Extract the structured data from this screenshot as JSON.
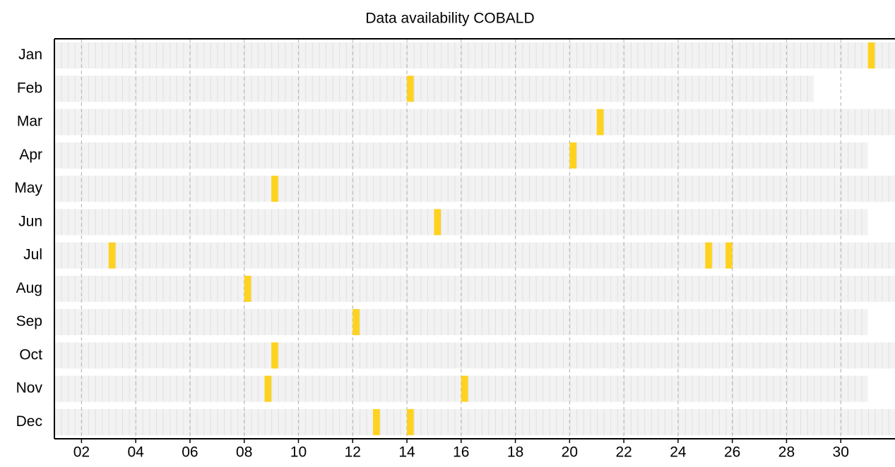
{
  "chart_data": {
    "type": "availability",
    "title": "Data availability COBALD",
    "categories": [
      "Jan",
      "Feb",
      "Mar",
      "Apr",
      "May",
      "Jun",
      "Jul",
      "Aug",
      "Sep",
      "Oct",
      "Nov",
      "Dec"
    ],
    "row_end": [
      32,
      29,
      32,
      31,
      32,
      31,
      32,
      32,
      31,
      32,
      31,
      32
    ],
    "events": [
      [
        [
          31,
          31.25
        ]
      ],
      [
        [
          14,
          14.25
        ]
      ],
      [
        [
          21,
          21.25
        ]
      ],
      [
        [
          20,
          20.25
        ]
      ],
      [
        [
          9,
          9.25
        ]
      ],
      [
        [
          15,
          15.25
        ]
      ],
      [
        [
          3,
          3.25
        ],
        [
          25,
          25.25
        ],
        [
          25.75,
          26
        ]
      ],
      [
        [
          8,
          8.25
        ]
      ],
      [
        [
          12,
          12.25
        ]
      ],
      [
        [
          9,
          9.25
        ]
      ],
      [
        [
          8.75,
          9
        ],
        [
          16,
          16.25
        ]
      ],
      [
        [
          12.75,
          13
        ],
        [
          14,
          14.25
        ]
      ]
    ],
    "color": "#ffd21f",
    "row_color": "#f2f2f2",
    "xlim": [
      1,
      32
    ],
    "xticks": [
      {
        "value": 2,
        "label": "02"
      },
      {
        "value": 4,
        "label": "04"
      },
      {
        "value": 6,
        "label": "06"
      },
      {
        "value": 8,
        "label": "08"
      },
      10,
      12,
      14,
      16,
      18,
      20,
      22,
      24,
      26,
      28,
      30
    ],
    "grid": true
  }
}
